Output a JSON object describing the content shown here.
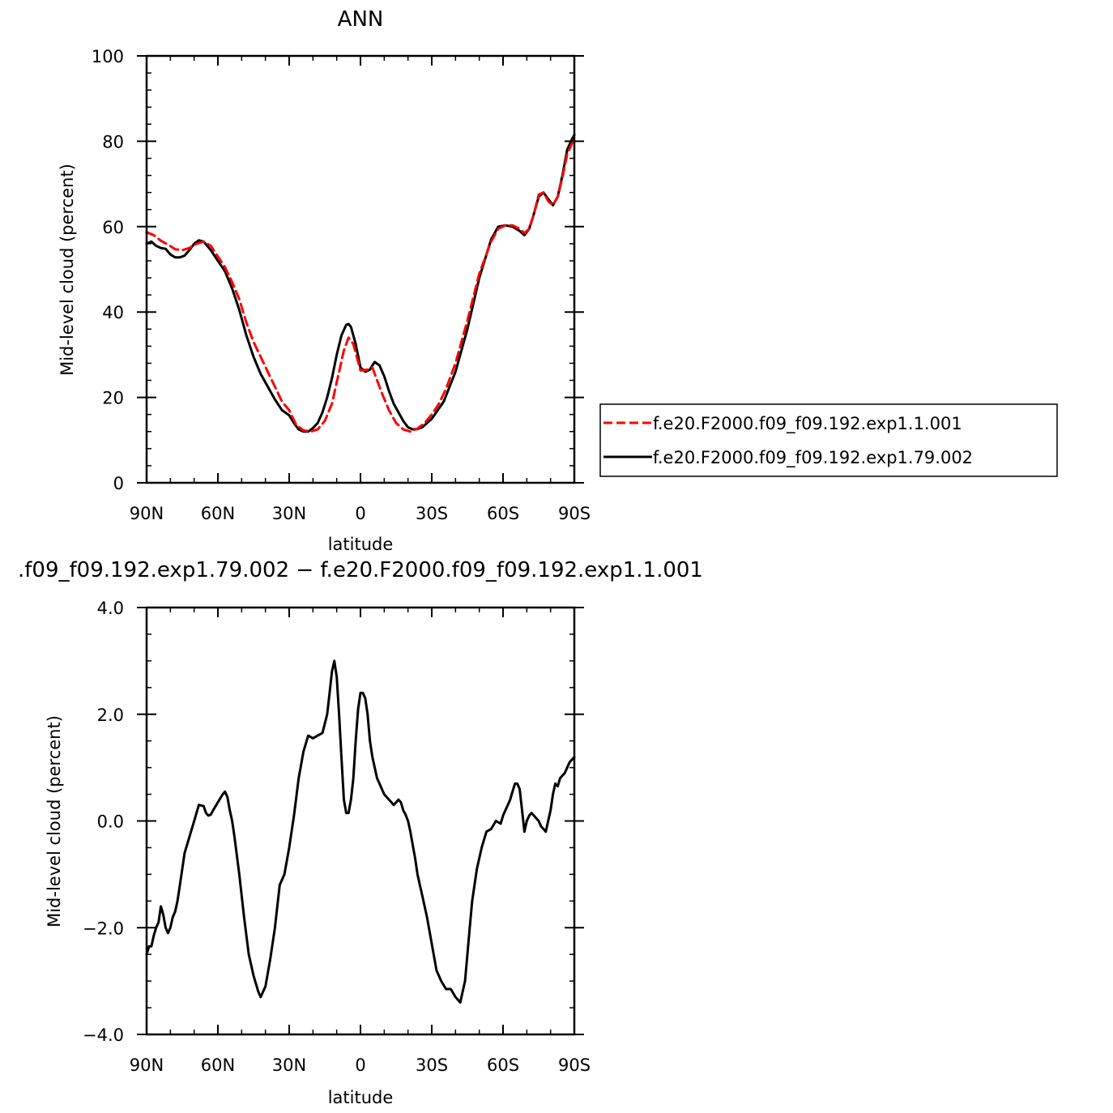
{
  "chart_data": [
    {
      "type": "line",
      "title": "ANN",
      "xlabel": "latitude",
      "ylabel": "Mid-level cloud (percent)",
      "xlim": [
        90,
        -90
      ],
      "ylim": [
        0,
        100
      ],
      "x_ticks": [
        90,
        60,
        30,
        0,
        -30,
        -60,
        -90
      ],
      "x_tick_labels": [
        "90N",
        "60N",
        "30N",
        "0",
        "30S",
        "60S",
        "90S"
      ],
      "y_ticks": [
        0,
        20,
        40,
        60,
        80,
        100
      ],
      "y_tick_labels": [
        "0",
        "20",
        "40",
        "60",
        "80",
        "100"
      ],
      "grid": false,
      "legend_position": "right",
      "series": [
        {
          "name": "f.e20.F2000.f09_f09.192.exp1.1.001",
          "color": "#ff0000",
          "dash": "dashed",
          "x": [
            90,
            87,
            84,
            81,
            78,
            75,
            72,
            69,
            66,
            63,
            60,
            57,
            54,
            51,
            48,
            45,
            42,
            39,
            36,
            33,
            30,
            27,
            24,
            21,
            18,
            15,
            12,
            9,
            7,
            5,
            3,
            0,
            -3,
            -5,
            -7,
            -9,
            -12,
            -15,
            -18,
            -21,
            -24,
            -27,
            -30,
            -33,
            -36,
            -40,
            -45,
            -50,
            -55,
            -58,
            -61,
            -64,
            -67,
            -69,
            -71,
            -73,
            -75,
            -77,
            -79,
            -81,
            -83,
            -85,
            -87,
            -89,
            -90
          ],
          "y": [
            58.7,
            58.0,
            56.7,
            55.8,
            54.7,
            54.5,
            55.0,
            56.0,
            56.5,
            55.5,
            53.0,
            50.5,
            47.0,
            43.0,
            37.5,
            33.0,
            29.5,
            26.0,
            22.5,
            19.0,
            17.0,
            13.5,
            12.3,
            12.0,
            12.5,
            14.5,
            18.5,
            26.0,
            31.0,
            34.0,
            32.5,
            26.3,
            26.5,
            27.0,
            24.0,
            21.0,
            17.0,
            14.0,
            12.5,
            12.0,
            12.7,
            14.0,
            16.0,
            18.5,
            22.0,
            28.0,
            38.0,
            49.0,
            56.5,
            59.5,
            60.3,
            60.3,
            59.5,
            58.5,
            59.5,
            63.0,
            67.5,
            68.0,
            66.0,
            65.0,
            67.0,
            71.5,
            77.0,
            79.5,
            80.0
          ]
        },
        {
          "name": "f.e20.F2000.f09_f09.192.exp1.79.002",
          "color": "#000000",
          "dash": "solid",
          "x": [
            90,
            88,
            86,
            84,
            82,
            80,
            78,
            76,
            74,
            72,
            70,
            68,
            66,
            63,
            60,
            57,
            54,
            51,
            48,
            45,
            42,
            39,
            36,
            33,
            30,
            28,
            26,
            24,
            22,
            20,
            18,
            16,
            14,
            12,
            10,
            8,
            6,
            5,
            4,
            2,
            0,
            -2,
            -4,
            -5,
            -6,
            -8,
            -10,
            -12,
            -14,
            -16,
            -18,
            -20,
            -22,
            -24,
            -26,
            -30,
            -35,
            -40,
            -45,
            -50,
            -55,
            -58,
            -61,
            -64,
            -67,
            -69,
            -71,
            -73,
            -75,
            -77,
            -79,
            -81,
            -83,
            -85,
            -87,
            -89,
            -90
          ],
          "y": [
            56.0,
            56.5,
            55.5,
            55.0,
            54.8,
            53.5,
            52.8,
            52.8,
            53.2,
            54.5,
            56.0,
            56.8,
            56.5,
            54.5,
            52.0,
            49.5,
            45.5,
            40.5,
            34.5,
            29.5,
            25.5,
            22.5,
            19.5,
            17.0,
            15.8,
            14.0,
            12.5,
            12.0,
            12.0,
            12.8,
            14.0,
            16.5,
            20.0,
            24.5,
            30.0,
            34.5,
            37.0,
            37.2,
            36.5,
            32.5,
            27.0,
            26.0,
            26.5,
            27.5,
            28.3,
            27.5,
            25.0,
            21.5,
            18.5,
            16.5,
            14.5,
            13.0,
            12.5,
            12.6,
            13.0,
            15.0,
            19.0,
            26.0,
            36.0,
            48.0,
            57.0,
            60.0,
            60.3,
            60.0,
            59.0,
            58.0,
            59.5,
            63.0,
            67.0,
            68.0,
            66.5,
            65.0,
            67.0,
            72.0,
            78.0,
            80.5,
            81.5
          ]
        }
      ]
    },
    {
      "type": "line",
      "title": ".f09_f09.192.exp1.79.002 − f.e20.F2000.f09_f09.192.exp1.1.001",
      "xlabel": "latitude",
      "ylabel": "Mid-level cloud (percent)",
      "xlim": [
        90,
        -90
      ],
      "ylim": [
        -4.0,
        4.0
      ],
      "x_ticks": [
        90,
        60,
        30,
        0,
        -30,
        -60,
        -90
      ],
      "x_tick_labels": [
        "90N",
        "60N",
        "30N",
        "0",
        "30S",
        "60S",
        "90S"
      ],
      "y_ticks": [
        -4.0,
        -2.0,
        0.0,
        2.0,
        4.0
      ],
      "y_tick_labels": [
        "−4.0",
        "−2.0",
        "0.0",
        "2.0",
        "4.0"
      ],
      "grid": false,
      "series": [
        {
          "color": "#000000",
          "dash": "solid",
          "x": [
            90,
            89,
            88,
            87,
            86,
            85,
            84,
            83,
            82,
            81,
            80,
            79,
            78,
            77,
            76,
            75,
            74,
            72,
            70,
            68,
            66,
            65,
            64,
            63,
            62,
            60,
            58,
            57,
            56,
            55,
            54,
            53,
            51,
            49,
            47,
            45,
            43,
            42,
            41,
            40,
            39,
            38,
            36,
            34,
            32,
            30,
            28,
            26,
            24,
            22,
            20,
            18,
            16,
            14,
            13,
            12,
            11,
            10,
            9,
            8,
            7,
            6,
            5,
            4,
            3,
            2,
            1,
            0,
            -1,
            -2,
            -3,
            -4,
            -5,
            -6,
            -7,
            -8,
            -10,
            -12,
            -14,
            -16,
            -17,
            -18,
            -19,
            -20,
            -21,
            -22,
            -23,
            -24,
            -25,
            -26,
            -28,
            -30,
            -32,
            -34,
            -36,
            -38,
            -40,
            -42,
            -43,
            -44,
            -45,
            -46,
            -47,
            -48,
            -49,
            -51,
            -53,
            -55,
            -57,
            -59,
            -60,
            -61,
            -62,
            -63,
            -64,
            -65,
            -66,
            -67,
            -68,
            -69,
            -70,
            -71,
            -72,
            -73,
            -74,
            -75,
            -76,
            -77,
            -78,
            -79,
            -80,
            -81,
            -82,
            -83,
            -84,
            -85,
            -86,
            -87,
            -88,
            -89,
            -90
          ],
          "y": [
            -2.5,
            -2.35,
            -2.35,
            -2.15,
            -2.0,
            -1.9,
            -1.6,
            -1.75,
            -2.0,
            -2.1,
            -2.0,
            -1.8,
            -1.7,
            -1.5,
            -1.2,
            -0.9,
            -0.6,
            -0.3,
            0.0,
            0.3,
            0.28,
            0.15,
            0.1,
            0.12,
            0.2,
            0.35,
            0.5,
            0.55,
            0.45,
            0.2,
            0.0,
            -0.3,
            -1.0,
            -1.8,
            -2.5,
            -2.9,
            -3.2,
            -3.3,
            -3.2,
            -3.1,
            -2.85,
            -2.6,
            -2.0,
            -1.2,
            -1.0,
            -0.5,
            0.1,
            0.8,
            1.3,
            1.6,
            1.55,
            1.6,
            1.65,
            2.0,
            2.4,
            2.8,
            3.0,
            2.7,
            2.0,
            1.2,
            0.4,
            0.15,
            0.15,
            0.4,
            0.8,
            1.5,
            2.1,
            2.4,
            2.4,
            2.3,
            2.0,
            1.5,
            1.2,
            1.0,
            0.8,
            0.7,
            0.5,
            0.4,
            0.3,
            0.4,
            0.35,
            0.2,
            0.12,
            0.0,
            -0.2,
            -0.45,
            -0.7,
            -1.0,
            -1.2,
            -1.4,
            -1.8,
            -2.3,
            -2.8,
            -3.0,
            -3.15,
            -3.15,
            -3.3,
            -3.4,
            -3.2,
            -3.0,
            -2.5,
            -2.0,
            -1.5,
            -1.2,
            -0.9,
            -0.5,
            -0.2,
            -0.15,
            0.0,
            -0.05,
            0.1,
            0.2,
            0.3,
            0.4,
            0.55,
            0.7,
            0.7,
            0.6,
            0.2,
            -0.2,
            0.0,
            0.1,
            0.15,
            0.1,
            0.05,
            0.0,
            -0.1,
            -0.15,
            -0.2,
            0.0,
            0.2,
            0.5,
            0.7,
            0.65,
            0.8,
            0.85,
            0.9,
            1.0,
            1.1,
            1.15,
            1.2
          ]
        }
      ]
    }
  ]
}
